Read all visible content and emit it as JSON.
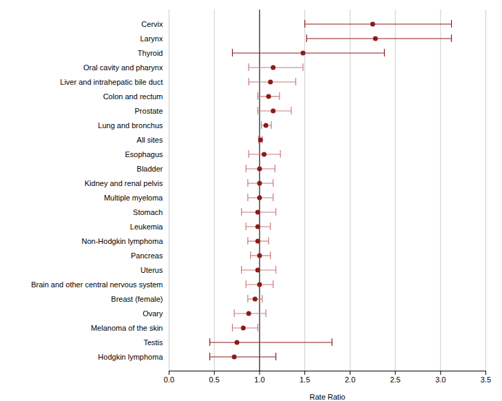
{
  "chart_data": {
    "type": "errorbar",
    "orientation": "horizontal",
    "xlabel": "Rate Ratio",
    "categories": [
      "Cervix",
      "Larynx",
      "Thyroid",
      "Oral cavity and pharynx",
      "Liver and intrahepatic bile duct",
      "Colon and rectum",
      "Prostate",
      "Lung and bronchus",
      "All sites",
      "Esophagus",
      "Bladder",
      "Kidney and renal pelvis",
      "Multiple myeloma",
      "Stomach",
      "Leukemia",
      "Non-Hodgkin lymphoma",
      "Pancreas",
      "Uterus",
      "Brain and other central nervous system",
      "Breast (female)",
      "Ovary",
      "Melanoma of the skin",
      "Testis",
      "Hodgkin lymphoma"
    ],
    "values": [
      2.25,
      2.28,
      1.48,
      1.15,
      1.12,
      1.1,
      1.15,
      1.07,
      1.01,
      1.05,
      1.0,
      1.0,
      1.0,
      0.98,
      0.98,
      0.98,
      1.0,
      0.98,
      1.0,
      0.95,
      0.88,
      0.82,
      0.75,
      0.72
    ],
    "ci_low": [
      1.5,
      1.52,
      0.7,
      0.88,
      0.88,
      0.98,
      0.98,
      1.02,
      0.99,
      0.88,
      0.85,
      0.87,
      0.87,
      0.8,
      0.85,
      0.87,
      0.9,
      0.8,
      0.85,
      0.87,
      0.72,
      0.7,
      0.45,
      0.45
    ],
    "ci_high": [
      3.12,
      3.12,
      2.38,
      1.48,
      1.4,
      1.22,
      1.35,
      1.13,
      1.03,
      1.23,
      1.17,
      1.15,
      1.15,
      1.18,
      1.12,
      1.1,
      1.12,
      1.18,
      1.15,
      1.03,
      1.07,
      0.98,
      1.8,
      1.18
    ],
    "color": "#8B1A1A",
    "colors": [
      "#8B1A1A",
      "#8B1A1A",
      "#8B1A1A",
      "#C87878",
      "#C87878",
      "#C87878",
      "#C87878",
      "#C87878",
      "#C87878",
      "#C87878",
      "#C87878",
      "#C87878",
      "#C87878",
      "#C87878",
      "#C87878",
      "#C87878",
      "#C87878",
      "#C87878",
      "#C87878",
      "#C87878",
      "#C87878",
      "#C87878",
      "#8B1A1A",
      "#8B1A1A"
    ],
    "reference_x": 1.0,
    "xlim": [
      0.0,
      3.5
    ],
    "xticks": [
      {
        "value": 0.0,
        "label": "0.0"
      },
      0.5,
      {
        "value": 1.0,
        "label": "1.0"
      },
      1.5,
      {
        "value": 2.0,
        "label": "2.0"
      },
      2.5,
      {
        "value": 3.0,
        "label": "3.0"
      },
      3.5
    ],
    "grid": true
  }
}
